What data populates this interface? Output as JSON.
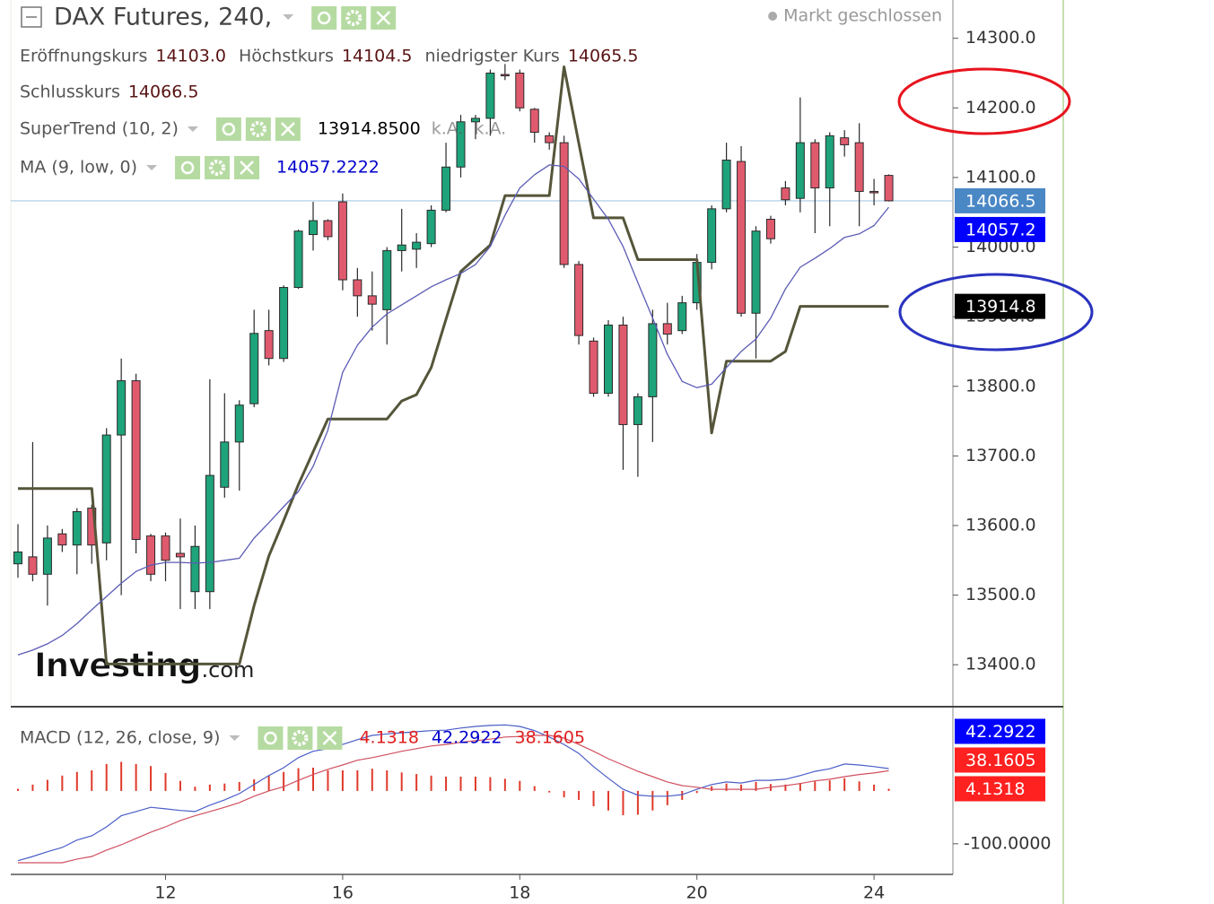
{
  "chart_data": [
    {
      "type": "candlestick",
      "title": "DAX Futures, 240,",
      "status": "Markt geschlossen",
      "legend": [
        [
          {
            "label": "Eröffnungskurs",
            "value": "14103.0"
          },
          {
            "label": "Höchstkurs",
            "value": "14104.5"
          },
          {
            "label": "niedrigster Kurs",
            "value": "14065.5"
          }
        ],
        [
          {
            "label": "Schlusskurs",
            "value": "14066.5"
          }
        ]
      ],
      "up_color": "#1ea37a",
      "down_color": "#e05a6e",
      "open": [
        13545,
        13555,
        13530,
        13588,
        13572,
        13625,
        13575,
        13730,
        13808,
        13585,
        13585,
        13560,
        13505,
        13505,
        13655,
        13720,
        13775,
        13880,
        13840,
        13942,
        14018,
        14038,
        14065,
        13953,
        13930,
        13910,
        13995,
        13997,
        14005,
        14053,
        14115,
        14180,
        14185,
        14248,
        14250,
        14198,
        14160,
        14150,
        13975,
        13865,
        13790,
        13888,
        13745,
        13785,
        13890,
        13880,
        13920,
        13978,
        14055,
        14123,
        13905,
        14040,
        14085,
        14070,
        14150,
        14085,
        14157,
        14150,
        14080,
        14103
      ],
      "high": [
        13602,
        13720,
        13600,
        13595,
        13625,
        13630,
        13740,
        13840,
        13818,
        13588,
        13590,
        13610,
        13600,
        13810,
        13790,
        13780,
        13910,
        13910,
        13945,
        14025,
        14065,
        14040,
        14077,
        13970,
        13965,
        14000,
        14055,
        14020,
        14060,
        14150,
        14190,
        14190,
        14255,
        14263,
        14255,
        14200,
        14165,
        14160,
        13980,
        13870,
        13895,
        13900,
        13790,
        13910,
        13920,
        13930,
        13990,
        14060,
        14150,
        14145,
        14030,
        14045,
        14095,
        14215,
        14155,
        14165,
        14168,
        14178,
        14098,
        14104.5
      ],
      "low": [
        13525,
        13520,
        13485,
        13562,
        13530,
        13545,
        13550,
        13500,
        13560,
        13520,
        13520,
        13480,
        13480,
        13480,
        13640,
        13650,
        13770,
        13830,
        13835,
        13940,
        13995,
        14010,
        13938,
        13900,
        13880,
        13860,
        13965,
        13970,
        14000,
        14050,
        14100,
        14155,
        14160,
        14240,
        14195,
        14150,
        14140,
        13970,
        13860,
        13785,
        13785,
        13680,
        13670,
        13720,
        13860,
        13875,
        13910,
        13968,
        14050,
        13900,
        13840,
        14005,
        14060,
        14050,
        14020,
        14030,
        14130,
        14030,
        14060,
        14065.5
      ],
      "close": [
        13562,
        13530,
        13582,
        13572,
        13620,
        13572,
        13730,
        13808,
        13580,
        13530,
        13550,
        13555,
        13570,
        13672,
        13720,
        13773,
        13876,
        13840,
        13942,
        14023,
        14038,
        14015,
        13953,
        13930,
        13918,
        13995,
        14003,
        14007,
        14053,
        14115,
        14180,
        14185,
        14250,
        14247,
        14200,
        14165,
        14150,
        13975,
        13873,
        13790,
        13888,
        13745,
        13785,
        13890,
        13875,
        13920,
        13978,
        14055,
        14125,
        13905,
        14023,
        14012,
        14068,
        14150,
        14085,
        14160,
        14147,
        14080,
        14078,
        14066.5
      ],
      "series": [
        {
          "name": "SuperTrend (10, 2)",
          "color": "#55553a",
          "legend_value": "13914.8500",
          "legend_color": "#000000",
          "notes": [
            "k.A.",
            "k.A."
          ],
          "values": [
            13653,
            13653,
            13653,
            13653,
            13653,
            13653,
            13401,
            13401,
            13401,
            13401,
            13401,
            13401,
            13401,
            13401,
            13401,
            13401,
            13485,
            13556,
            13607,
            13659,
            13706,
            13753,
            13753,
            13753,
            13753,
            13753,
            13779,
            13788,
            13827,
            13896,
            13965,
            13984,
            14003,
            14074,
            14074,
            14074,
            14074,
            14259,
            14149,
            14042,
            14042,
            14042,
            13982,
            13982,
            13982,
            13982,
            13982,
            13733,
            13836,
            13836,
            13836,
            13836,
            13850,
            13914.85,
            13914.85,
            13914.85,
            13914.85,
            13914.85,
            13914.85,
            13914.85
          ]
        },
        {
          "name": "MA (9, low, 0)",
          "color": "#5b5bb5",
          "legend_value": "14057.2222",
          "legend_color": "#0000cc",
          "values": [
            13414,
            13421,
            13430,
            13442,
            13459,
            13479,
            13498,
            13517,
            13534,
            13543,
            13547,
            13547,
            13546,
            13547,
            13550,
            13553,
            13582,
            13604,
            13627,
            13649,
            13685,
            13737,
            13820,
            13859,
            13885,
            13904,
            13917,
            13930,
            13943,
            13953,
            13962,
            13975,
            14001,
            14046,
            14085,
            14104,
            14118,
            14116,
            14098,
            14069,
            14040,
            14001,
            13949,
            13898,
            13846,
            13807,
            13798,
            13803,
            13827,
            13850,
            13868,
            13898,
            13940,
            13971,
            13984,
            13998,
            14014,
            14019,
            14031,
            14057.2222
          ]
        }
      ],
      "ylim": [
        13341,
        14355
      ],
      "yticks": [
        {
          "value": 14300,
          "label": "14300.0"
        },
        {
          "value": 14200,
          "label": "14200.0"
        },
        {
          "value": 14100,
          "label": "14100.0"
        },
        {
          "value": 14000,
          "label": "14000.0"
        },
        {
          "value": 13900,
          "label": "13900.0"
        },
        {
          "value": 13800,
          "label": "13800.0"
        },
        {
          "value": 13700,
          "label": "13700.0"
        },
        {
          "value": 13600,
          "label": "13600.0"
        },
        {
          "value": 13500,
          "label": "13500.0"
        },
        {
          "value": 13400,
          "label": "13400.0"
        }
      ],
      "price_tags": [
        {
          "value": 14066.5,
          "label": "14066.5",
          "color": "#4a87c5"
        },
        {
          "value": 14057.2222,
          "label": "14057.2",
          "color": "#0000ff"
        },
        {
          "value": 13914.85,
          "label": "13914.8",
          "color": "#000000"
        }
      ],
      "watermark": [
        "Investing",
        ".com"
      ]
    },
    {
      "type": "macd",
      "name": "MACD (12, 26, close, 9)",
      "legend_values": [
        {
          "label": "4.1318",
          "color": "#e02020"
        },
        {
          "label": "42.2922",
          "color": "#0000cc"
        },
        {
          "label": "38.1605",
          "color": "#e02020"
        }
      ],
      "categories": [
        null,
        null,
        null,
        null,
        null,
        null,
        null,
        null,
        null,
        null,
        "12",
        null,
        null,
        null,
        null,
        null,
        null,
        null,
        null,
        null,
        null,
        null,
        "16",
        null,
        null,
        null,
        null,
        null,
        null,
        null,
        null,
        null,
        null,
        null,
        "18",
        null,
        null,
        null,
        null,
        null,
        null,
        null,
        null,
        null,
        null,
        null,
        "20",
        null,
        null,
        null,
        null,
        null,
        null,
        null,
        null,
        null,
        null,
        null,
        "24",
        null
      ],
      "lines": [
        {
          "color": "#4a5ec8",
          "values": [
            -132,
            -124,
            -115,
            -107,
            -93,
            -85,
            -68,
            -47,
            -39,
            -31,
            -34,
            -37,
            -39,
            -27,
            -17,
            -5,
            12,
            29,
            44,
            63,
            75,
            80,
            88,
            97,
            105,
            108,
            110,
            112,
            114,
            115,
            119,
            122,
            124,
            125,
            122,
            114,
            102,
            88,
            71,
            46,
            24,
            3,
            -8,
            -10,
            -10,
            -7,
            3,
            12,
            17,
            15,
            20,
            20,
            22,
            29,
            37,
            42,
            51,
            49,
            46,
            42.2922
          ]
        },
        {
          "color": "#d05060",
          "values": [
            -136,
            -136,
            -136,
            -136,
            -129,
            -124,
            -112,
            -102,
            -90,
            -78,
            -68,
            -56,
            -47,
            -39,
            -31,
            -22,
            -10,
            0,
            8,
            20,
            31,
            41,
            49,
            58,
            63,
            69,
            75,
            80,
            85,
            88,
            92,
            95,
            98,
            102,
            103,
            105,
            105,
            100,
            88,
            75,
            61,
            49,
            37,
            27,
            17,
            10,
            7,
            3,
            3,
            3,
            3,
            7,
            10,
            14,
            19,
            22,
            27,
            31,
            34,
            38.1605
          ]
        }
      ],
      "histogram": {
        "color": "#e03a2a",
        "values": [
          4,
          12,
          21,
          29,
          36,
          39,
          51,
          55,
          51,
          47,
          34,
          19,
          8,
          12,
          14,
          17,
          22,
          29,
          36,
          43,
          44,
          39,
          39,
          39,
          42,
          39,
          35,
          32,
          29,
          27,
          27,
          27,
          26,
          23,
          19,
          9,
          -3,
          -12,
          -17,
          -29,
          -37,
          -46,
          -45,
          -37,
          -27,
          -17,
          -4,
          9,
          14,
          12,
          17,
          13,
          12,
          15,
          18,
          20,
          24,
          18,
          12,
          4.1318
        ]
      },
      "ylim": [
        -158,
        156
      ],
      "yticks": [
        {
          "value": -100,
          "label": "-100.0000"
        }
      ],
      "price_tags": [
        {
          "value": 42.2922,
          "label": "42.2922",
          "color": "#0000ff"
        },
        {
          "value": 38.1605,
          "label": "38.1605",
          "color": "#ff2020"
        },
        {
          "value": 4.1318,
          "label": "4.1318",
          "color": "#ff2020"
        }
      ]
    }
  ]
}
